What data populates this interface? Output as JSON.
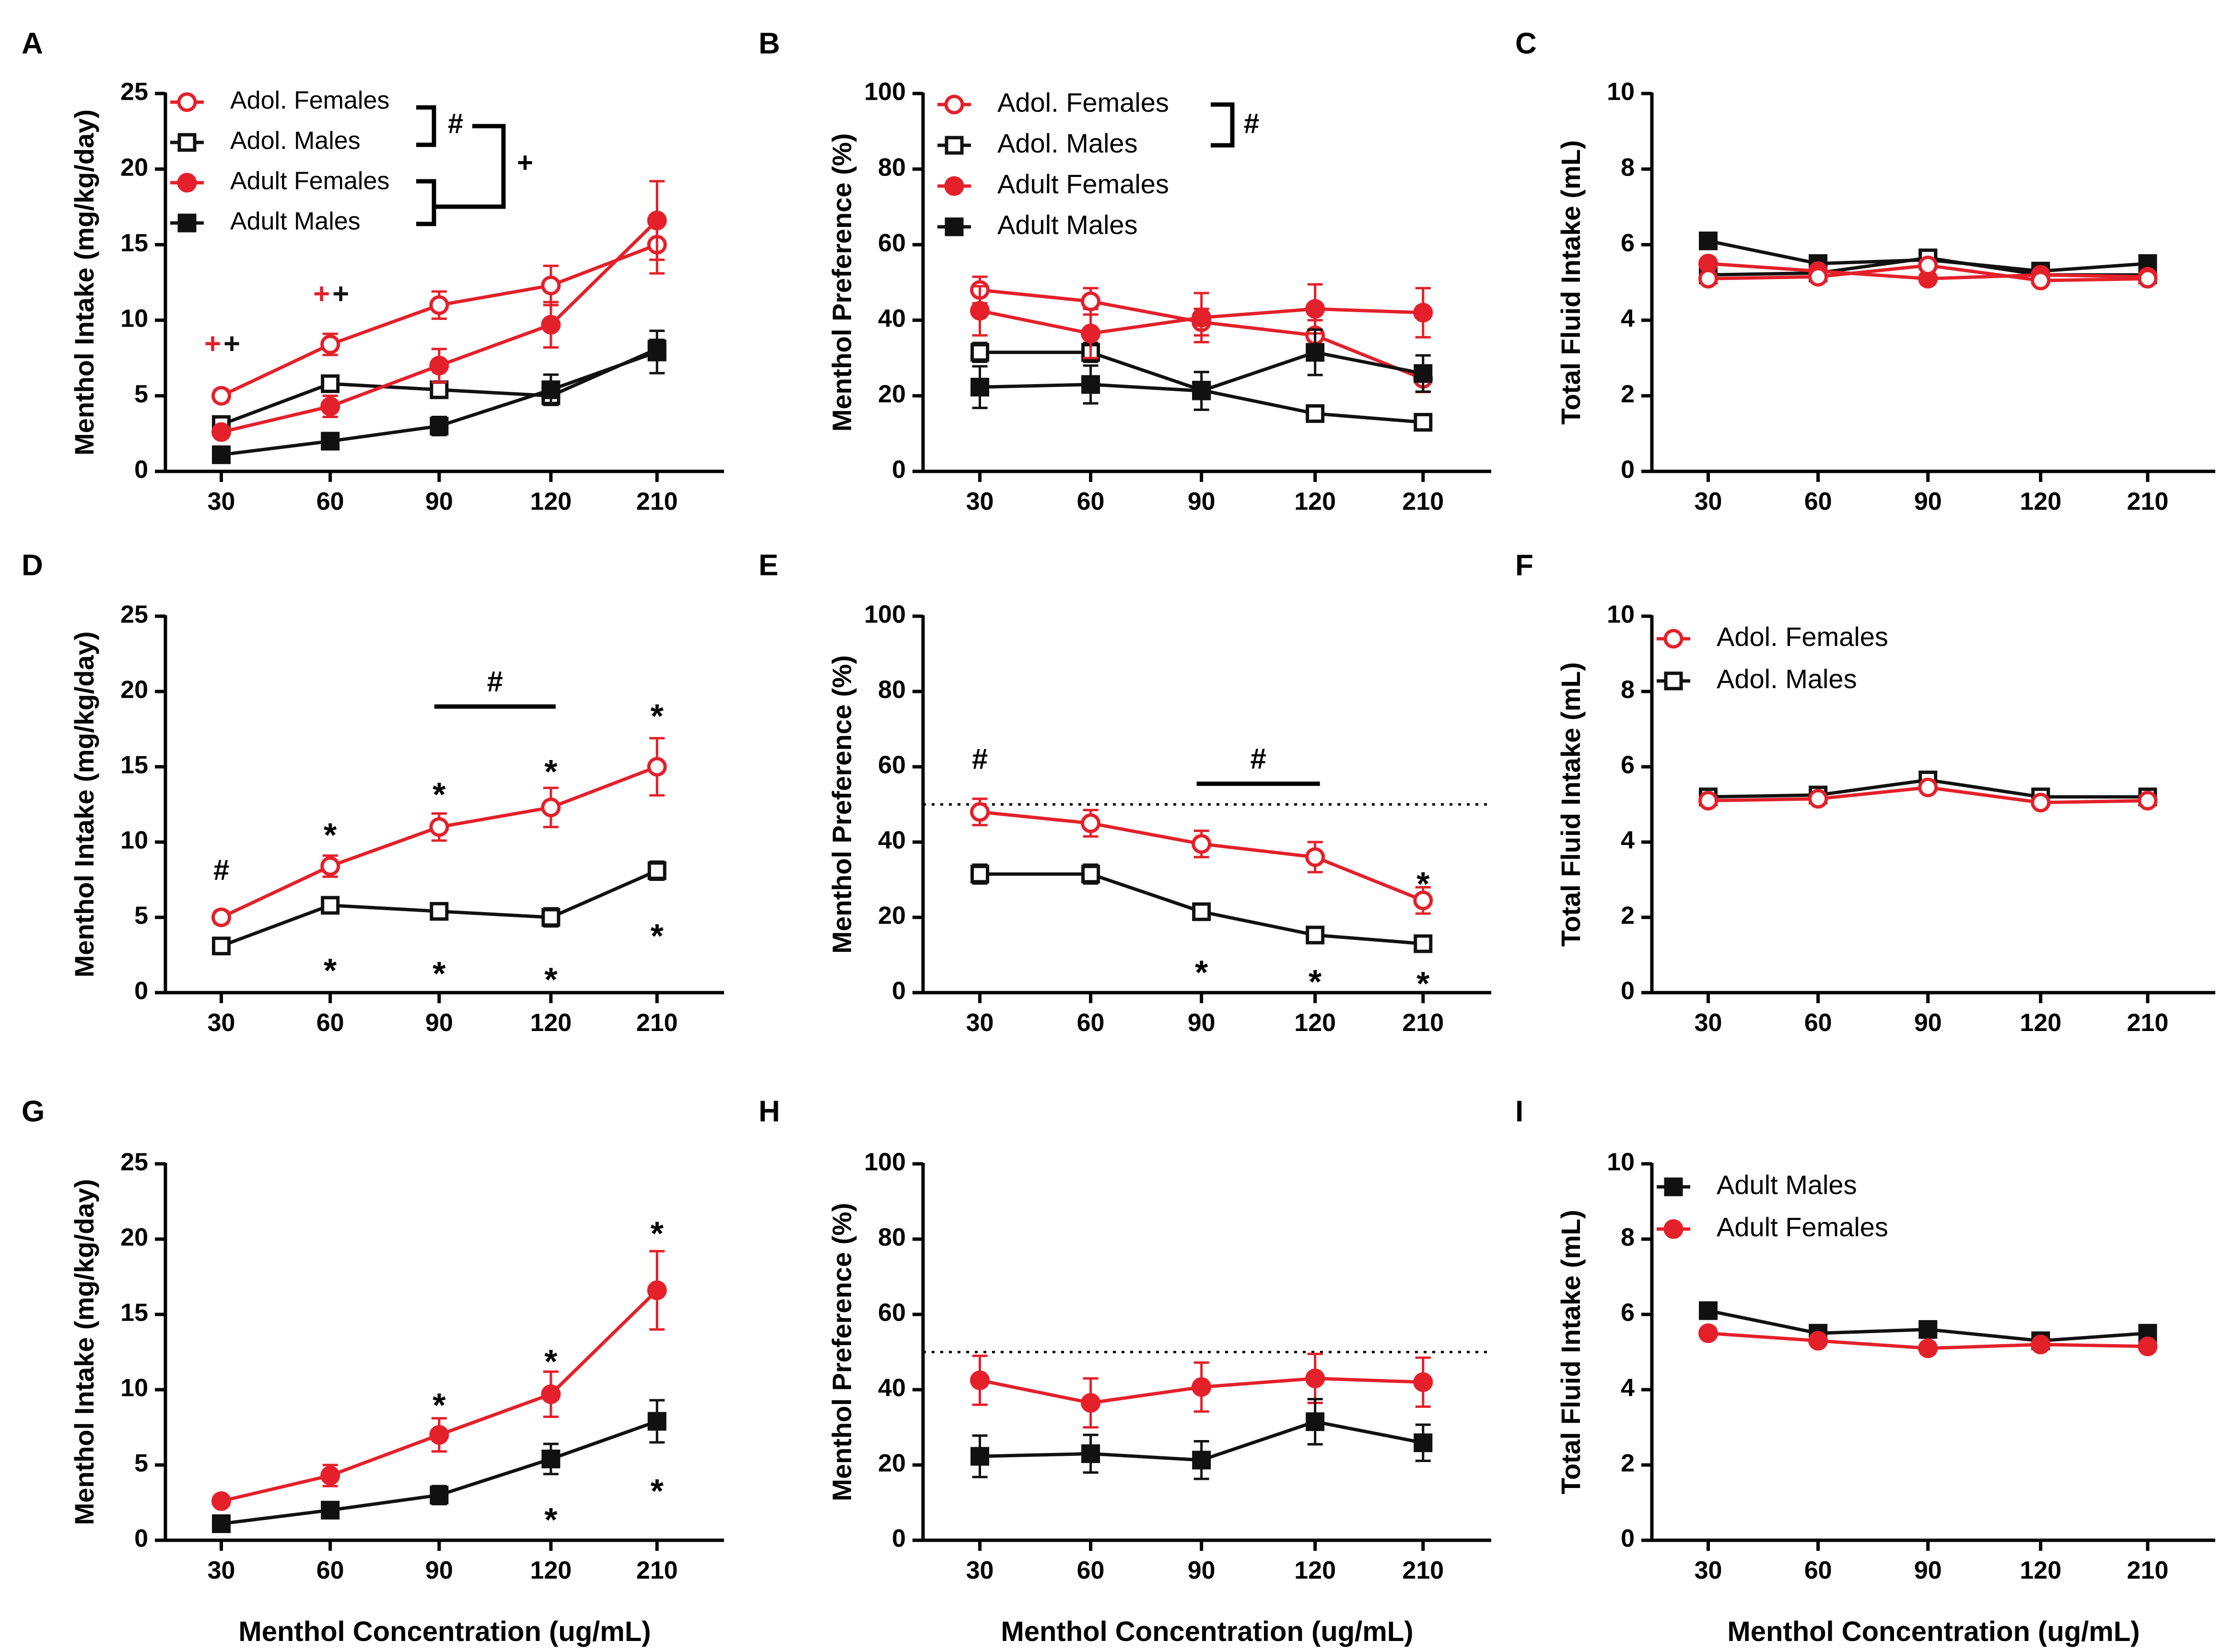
{
  "colors": {
    "red": "#e4202a",
    "black": "#111111"
  },
  "chart_data": [
    {
      "panel": "A",
      "type": "line",
      "x": [
        "30",
        "60",
        "90",
        "120",
        "210"
      ],
      "ylabel": "Menthol Intake (mg/kg/day)",
      "xlabel": "",
      "ylim": [
        0,
        25
      ],
      "yticks": [
        "0",
        "5",
        "10",
        "15",
        "20",
        "25"
      ],
      "legend": {
        "entries": [
          "Adol. Females",
          "Adol. Males",
          "Adult Females",
          "Adult Males"
        ],
        "hash": "#",
        "plus": "+"
      },
      "series": [
        {
          "name": "Adol. Females",
          "marker": "circle-open",
          "color": "red",
          "values": [
            5.0,
            8.4,
            11.0,
            12.3,
            15.0
          ],
          "err": [
            0.4,
            0.7,
            0.9,
            1.3,
            1.9
          ]
        },
        {
          "name": "Adol. Males",
          "marker": "square-open",
          "color": "black",
          "values": [
            3.1,
            5.8,
            5.4,
            5.0,
            8.1
          ],
          "err": [
            0.3,
            0.4,
            0.4,
            0.6,
            0.6
          ]
        },
        {
          "name": "Adult Females",
          "marker": "circle",
          "color": "red",
          "values": [
            2.6,
            4.3,
            7.0,
            9.7,
            16.6
          ],
          "err": [
            0.3,
            0.7,
            1.1,
            1.5,
            2.6
          ]
        },
        {
          "name": "Adult Males",
          "marker": "square",
          "color": "black",
          "values": [
            1.1,
            2.0,
            3.0,
            5.4,
            7.9
          ],
          "err": [
            0.2,
            0.3,
            0.6,
            1.0,
            1.4
          ]
        }
      ],
      "annotations": [
        {
          "text": "+",
          "color": "red",
          "xi": 0,
          "y": 8.3,
          "dx": -18
        },
        {
          "text": "+",
          "color": "black",
          "xi": 0,
          "y": 8.3,
          "dx": 22
        },
        {
          "text": "+",
          "color": "red",
          "xi": 1,
          "y": 11.6,
          "dx": -18
        },
        {
          "text": "+",
          "color": "black",
          "xi": 1,
          "y": 11.6,
          "dx": 22
        }
      ]
    },
    {
      "panel": "B",
      "type": "line",
      "x": [
        "30",
        "60",
        "90",
        "120",
        "210"
      ],
      "ylabel": "Menthol Preference (%)",
      "xlabel": "",
      "ylim": [
        0,
        100
      ],
      "yticks": [
        "0",
        "20",
        "40",
        "60",
        "80",
        "100"
      ],
      "legend": {
        "entries": [
          "Adol. Females",
          "Adol. Males",
          "Adult Females",
          "Adult Males"
        ],
        "hash": "#"
      },
      "series": [
        {
          "name": "Adol. Females",
          "marker": "circle-open",
          "color": "red",
          "values": [
            48,
            45,
            39.5,
            36,
            24.5
          ],
          "err": [
            3.5,
            3.5,
            3.5,
            4,
            3.5
          ]
        },
        {
          "name": "Adol. Males",
          "marker": "square-open",
          "color": "black",
          "values": [
            31.5,
            31.5,
            21.5,
            15.3,
            13
          ],
          "err": [
            2.5,
            2.5,
            2,
            1.5,
            1.5
          ]
        },
        {
          "name": "Adult Females",
          "marker": "circle",
          "color": "red",
          "values": [
            42.5,
            36.5,
            40.7,
            43,
            42
          ],
          "err": [
            6.5,
            6.5,
            6.5,
            6.5,
            6.5
          ]
        },
        {
          "name": "Adult Males",
          "marker": "square",
          "color": "black",
          "values": [
            22.3,
            23,
            21.3,
            31.5,
            25.9
          ],
          "err": [
            5.5,
            5,
            5,
            6,
            4.8
          ]
        }
      ],
      "annotations": []
    },
    {
      "panel": "C",
      "type": "line",
      "x": [
        "30",
        "60",
        "90",
        "120",
        "210"
      ],
      "ylabel": "Total Fluid Intake (mL)",
      "xlabel": "",
      "ylim": [
        0,
        10
      ],
      "yticks": [
        "0",
        "2",
        "4",
        "6",
        "8",
        "10"
      ],
      "series": [
        {
          "name": "Adult Males",
          "marker": "square",
          "color": "black",
          "values": [
            6.1,
            5.5,
            5.6,
            5.3,
            5.5
          ],
          "err": [
            0.1,
            0.1,
            0.1,
            0.1,
            0.1
          ]
        },
        {
          "name": "Adol. Males",
          "marker": "square-open",
          "color": "black",
          "values": [
            5.2,
            5.25,
            5.65,
            5.2,
            5.2
          ],
          "err": [
            0.1,
            0.1,
            0.1,
            0.1,
            0.1
          ]
        },
        {
          "name": "Adult Females",
          "marker": "circle",
          "color": "red",
          "values": [
            5.5,
            5.3,
            5.1,
            5.2,
            5.15
          ],
          "err": [
            0.15,
            0.1,
            0.15,
            0.1,
            0.1
          ]
        },
        {
          "name": "Adol. Females",
          "marker": "circle-open",
          "color": "red",
          "values": [
            5.1,
            5.15,
            5.45,
            5.05,
            5.1
          ],
          "err": [
            0.1,
            0.1,
            0.1,
            0.1,
            0.1
          ]
        }
      ],
      "annotations": []
    },
    {
      "panel": "D",
      "type": "line",
      "x": [
        "30",
        "60",
        "90",
        "120",
        "210"
      ],
      "ylabel": "Menthol Intake (mg/kg/day)",
      "xlabel": "",
      "ylim": [
        0,
        25
      ],
      "yticks": [
        "0",
        "5",
        "10",
        "15",
        "20",
        "25"
      ],
      "series": [
        {
          "name": "Adol. Females",
          "marker": "circle-open",
          "color": "red",
          "values": [
            5.0,
            8.4,
            11.0,
            12.3,
            15.0
          ],
          "err": [
            0.4,
            0.7,
            0.9,
            1.3,
            1.9
          ]
        },
        {
          "name": "Adol. Males",
          "marker": "square-open",
          "color": "black",
          "values": [
            3.1,
            5.8,
            5.4,
            5.0,
            8.1
          ],
          "err": [
            0.3,
            0.4,
            0.4,
            0.6,
            0.6
          ]
        }
      ],
      "bars": [
        {
          "xi0": 2,
          "xi1": 3,
          "y": 19.0,
          "label": "#"
        }
      ],
      "annotations": [
        {
          "text": "#",
          "xi": 0,
          "y": 8.0
        },
        {
          "text": "*",
          "xi": 1,
          "y": 11.0
        },
        {
          "text": "*",
          "xi": 2,
          "y": 13.7
        },
        {
          "text": "*",
          "xi": 3,
          "y": 15.2
        },
        {
          "text": "*",
          "xi": 4,
          "y": 18.9
        },
        {
          "text": "*",
          "xi": 1,
          "y": 2.0
        },
        {
          "text": "*",
          "xi": 2,
          "y": 1.8
        },
        {
          "text": "*",
          "xi": 3,
          "y": 1.4
        },
        {
          "text": "*",
          "xi": 4,
          "y": 4.3
        }
      ]
    },
    {
      "panel": "E",
      "type": "line",
      "x": [
        "30",
        "60",
        "90",
        "120",
        "210"
      ],
      "ylabel": "Menthol Preference (%)",
      "xlabel": "",
      "ylim": [
        0,
        100
      ],
      "yticks": [
        "0",
        "20",
        "40",
        "60",
        "80",
        "100"
      ],
      "refline": 50,
      "series": [
        {
          "name": "Adol. Females",
          "marker": "circle-open",
          "color": "red",
          "values": [
            48,
            45,
            39.5,
            36,
            24.5
          ],
          "err": [
            3.5,
            3.5,
            3.5,
            4,
            3.5
          ]
        },
        {
          "name": "Adol. Males",
          "marker": "square-open",
          "color": "black",
          "values": [
            31.5,
            31.5,
            21.5,
            15.3,
            13
          ],
          "err": [
            2.5,
            2.5,
            2,
            1.5,
            1.5
          ]
        }
      ],
      "bars": [
        {
          "xi0": 2,
          "xi1": 3,
          "y": 55.5,
          "label": "#"
        }
      ],
      "annotations": [
        {
          "text": "#",
          "xi": 0,
          "y": 61.5
        },
        {
          "text": "*",
          "xi": 4,
          "y": 31.0
        },
        {
          "text": "*",
          "xi": 2,
          "y": 7.5
        },
        {
          "text": "*",
          "xi": 3,
          "y": 5.0
        },
        {
          "text": "*",
          "xi": 4,
          "y": 4.5
        }
      ]
    },
    {
      "panel": "F",
      "type": "line",
      "x": [
        "30",
        "60",
        "90",
        "120",
        "210"
      ],
      "ylabel": "Total Fluid Intake (mL)",
      "xlabel": "",
      "ylim": [
        0,
        10
      ],
      "yticks": [
        "0",
        "2",
        "4",
        "6",
        "8",
        "10"
      ],
      "legend": {
        "entries": [
          "Adol. Females",
          "Adol. Males"
        ]
      },
      "series": [
        {
          "name": "Adol. Males",
          "marker": "square-open",
          "color": "black",
          "values": [
            5.2,
            5.25,
            5.65,
            5.2,
            5.2
          ],
          "err": [
            0.1,
            0.1,
            0.1,
            0.1,
            0.1
          ]
        },
        {
          "name": "Adol. Females",
          "marker": "circle-open",
          "color": "red",
          "values": [
            5.1,
            5.15,
            5.45,
            5.05,
            5.1
          ],
          "err": [
            0.1,
            0.1,
            0.1,
            0.1,
            0.1
          ]
        }
      ],
      "annotations": []
    },
    {
      "panel": "G",
      "type": "line",
      "x": [
        "30",
        "60",
        "90",
        "120",
        "210"
      ],
      "ylabel": "Menthol Intake (mg/kg/day)",
      "xlabel": "Menthol Concentration (ug/mL)",
      "ylim": [
        0,
        25
      ],
      "yticks": [
        "0",
        "5",
        "10",
        "15",
        "20",
        "25"
      ],
      "series": [
        {
          "name": "Adult Females",
          "marker": "circle",
          "color": "red",
          "values": [
            2.6,
            4.3,
            7.0,
            9.7,
            16.6
          ],
          "err": [
            0.3,
            0.7,
            1.1,
            1.5,
            2.6
          ]
        },
        {
          "name": "Adult Males",
          "marker": "square",
          "color": "black",
          "values": [
            1.1,
            2.0,
            3.0,
            5.4,
            7.9
          ],
          "err": [
            0.2,
            0.3,
            0.6,
            1.0,
            1.4
          ]
        }
      ],
      "annotations": [
        {
          "text": "*",
          "xi": 2,
          "y": 9.5
        },
        {
          "text": "*",
          "xi": 3,
          "y": 12.4
        },
        {
          "text": "*",
          "xi": 4,
          "y": 20.9
        },
        {
          "text": "*",
          "xi": 3,
          "y": 1.9
        },
        {
          "text": "*",
          "xi": 4,
          "y": 3.8
        }
      ]
    },
    {
      "panel": "H",
      "type": "line",
      "x": [
        "30",
        "60",
        "90",
        "120",
        "210"
      ],
      "ylabel": "Menthol Preference (%)",
      "xlabel": "Menthol Concentration (ug/mL)",
      "ylim": [
        0,
        100
      ],
      "yticks": [
        "0",
        "20",
        "40",
        "60",
        "80",
        "100"
      ],
      "refline": 50,
      "series": [
        {
          "name": "Adult Females",
          "marker": "circle",
          "color": "red",
          "values": [
            42.5,
            36.5,
            40.7,
            43,
            42
          ],
          "err": [
            6.5,
            6.5,
            6.5,
            6.5,
            6.5
          ]
        },
        {
          "name": "Adult Males",
          "marker": "square",
          "color": "black",
          "values": [
            22.3,
            23,
            21.3,
            31.5,
            25.9
          ],
          "err": [
            5.5,
            5,
            5,
            6,
            4.8
          ]
        }
      ],
      "annotations": []
    },
    {
      "panel": "I",
      "type": "line",
      "x": [
        "30",
        "60",
        "90",
        "120",
        "210"
      ],
      "ylabel": "Total Fluid Intake (mL)",
      "xlabel": "Menthol Concentration (ug/mL)",
      "ylim": [
        0,
        10
      ],
      "yticks": [
        "0",
        "2",
        "4",
        "6",
        "8",
        "10"
      ],
      "legend": {
        "entries": [
          "Adult Males",
          "Adult Females"
        ]
      },
      "series": [
        {
          "name": "Adult Males",
          "marker": "square",
          "color": "black",
          "values": [
            6.1,
            5.5,
            5.6,
            5.3,
            5.5
          ],
          "err": [
            0.1,
            0.1,
            0.1,
            0.1,
            0.1
          ]
        },
        {
          "name": "Adult Females",
          "marker": "circle",
          "color": "red",
          "values": [
            5.5,
            5.3,
            5.1,
            5.2,
            5.15
          ],
          "err": [
            0.15,
            0.1,
            0.15,
            0.1,
            0.1
          ]
        }
      ],
      "annotations": []
    }
  ]
}
